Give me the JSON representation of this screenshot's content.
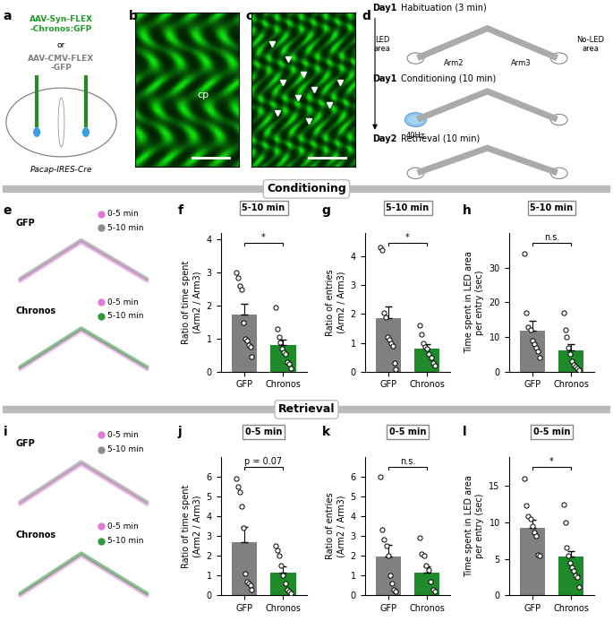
{
  "panel_labels": [
    "a",
    "b",
    "c",
    "d",
    "e",
    "f",
    "g",
    "h",
    "i",
    "j",
    "k",
    "l"
  ],
  "sections": [
    "Conditioning",
    "Retrieval"
  ],
  "panel_a": {
    "construct_1": "AAV-Syn-FLEX\n-Chronos:GFP",
    "or": "or",
    "construct_2": "AAV-CMV-FLEX\n-GFP",
    "mouse": "Pacap-IRES-Cre"
  },
  "panel_b": {
    "label": "cp"
  },
  "panel_d": {
    "steps": [
      {
        "day": "Day1",
        "text": "Habituation (3 min)"
      },
      {
        "day": "Day1",
        "text": "Conditioning (10 min)"
      },
      {
        "day": "Day2",
        "text": "Retrieval (10 min)"
      }
    ],
    "led_area": "LED\narea",
    "no_led_area": "No-LED\narea",
    "arms": [
      "Arm2",
      "Arm3"
    ],
    "stim": "40Hz"
  },
  "trajectories": {
    "groups": [
      "GFP",
      "Chronos"
    ],
    "windows": [
      "0-5 min",
      "5-10 min"
    ],
    "window_colors": [
      [
        "#e07ad6",
        "#8c8c8c"
      ],
      [
        "#e07ad6",
        "#2f9a3c"
      ]
    ]
  },
  "chart_data": [
    {
      "type": "bar",
      "title": "5-10 min",
      "ylabel": "Ratio of time spent\n(Arm2 / Arm3)",
      "categories": [
        "GFP",
        "Chronos"
      ],
      "values": [
        1.72,
        0.8
      ],
      "errors": [
        0.33,
        0.17
      ],
      "points": [
        [
          3.0,
          2.85,
          2.6,
          2.5,
          1.5,
          1.0,
          0.95,
          0.8,
          0.75,
          0.45
        ],
        [
          1.95,
          1.3,
          1.05,
          0.9,
          0.7,
          0.6,
          0.55,
          0.3,
          0.25,
          0.1
        ]
      ],
      "colors": [
        "#808080",
        "#1f8a2a"
      ],
      "ylim": [
        0,
        4.2
      ],
      "yticks": [
        0,
        1,
        2,
        3,
        4
      ],
      "significance": "*"
    },
    {
      "type": "bar",
      "title": "5-10 min",
      "ylabel": "Ratio of entries\n(Arm2 / Arm3)",
      "categories": [
        "GFP",
        "Chronos"
      ],
      "values": [
        1.85,
        0.8
      ],
      "errors": [
        0.42,
        0.15
      ],
      "points": [
        [
          4.3,
          4.2,
          2.05,
          1.9,
          1.2,
          1.1,
          1.0,
          0.9,
          0.3,
          0.1
        ],
        [
          1.6,
          1.3,
          1.0,
          0.85,
          0.8,
          0.6,
          0.5,
          0.3,
          0.2
        ]
      ],
      "colors": [
        "#808080",
        "#1f8a2a"
      ],
      "ylim": [
        0,
        4.8
      ],
      "yticks": [
        0,
        1,
        2,
        3,
        4
      ],
      "significance": "*"
    },
    {
      "type": "bar",
      "title": "5-10 min",
      "ylabel": "Time spent in LED area\nper entry (sec)",
      "categories": [
        "GFP",
        "Chronos"
      ],
      "values": [
        11.8,
        6.2
      ],
      "errors": [
        2.9,
        1.8
      ],
      "points": [
        [
          34,
          17,
          13,
          12,
          9,
          8,
          7,
          6,
          4
        ],
        [
          17,
          12,
          10,
          7,
          5,
          3,
          2,
          1.5,
          1,
          0.5
        ]
      ],
      "colors": [
        "#808080",
        "#1f8a2a"
      ],
      "ylim": [
        0,
        40
      ],
      "yticks": [
        0,
        10,
        20,
        30
      ],
      "significance": "n.s."
    },
    {
      "type": "bar",
      "title": "0-5 min",
      "ylabel": "Ratio of time spent\n(Arm2 / Arm3)",
      "categories": [
        "GFP",
        "Chronos"
      ],
      "values": [
        2.7,
        1.15
      ],
      "errors": [
        0.75,
        0.3
      ],
      "points": [
        [
          5.9,
          5.5,
          5.2,
          4.5,
          3.4,
          1.1,
          0.7,
          0.6,
          0.5,
          0.3
        ],
        [
          2.5,
          2.3,
          2.0,
          1.5,
          1.0,
          0.6,
          0.3,
          0.2,
          0.1
        ]
      ],
      "colors": [
        "#808080",
        "#1f8a2a"
      ],
      "ylim": [
        0,
        7
      ],
      "yticks": [
        0,
        1,
        2,
        3,
        4,
        5,
        6
      ],
      "significance": "p = 0.07"
    },
    {
      "type": "bar",
      "title": "0-5 min",
      "ylabel": "Ratio of entries\n(Arm2 / Arm3)",
      "categories": [
        "GFP",
        "Chronos"
      ],
      "values": [
        1.95,
        1.15
      ],
      "errors": [
        0.6,
        0.3
      ],
      "points": [
        [
          6.0,
          3.3,
          2.8,
          2.5,
          2.0,
          1.0,
          0.6,
          0.3,
          0.2
        ],
        [
          2.9,
          2.1,
          2.0,
          1.5,
          1.3,
          0.7,
          0.3,
          0.2
        ]
      ],
      "colors": [
        "#808080",
        "#1f8a2a"
      ],
      "ylim": [
        0,
        7
      ],
      "yticks": [
        0,
        1,
        2,
        3,
        4,
        5,
        6
      ],
      "significance": "n.s."
    },
    {
      "type": "bar",
      "title": "0-5 min",
      "ylabel": "Time spent in LED area\nper entry (sec)",
      "categories": [
        "GFP",
        "Chronos"
      ],
      "values": [
        9.3,
        5.3
      ],
      "errors": [
        1.0,
        0.8
      ],
      "points": [
        [
          16,
          12.3,
          10.8,
          10.5,
          9.5,
          8.6,
          8.2,
          5.6,
          5.5
        ],
        [
          12.4,
          10,
          6.5,
          5.5,
          4.5,
          3.8,
          3.4,
          2.8,
          2.5,
          1.2
        ]
      ],
      "colors": [
        "#808080",
        "#1f8a2a"
      ],
      "ylim": [
        0,
        19
      ],
      "yticks": [
        0,
        5,
        10,
        15
      ],
      "significance": "*"
    }
  ]
}
